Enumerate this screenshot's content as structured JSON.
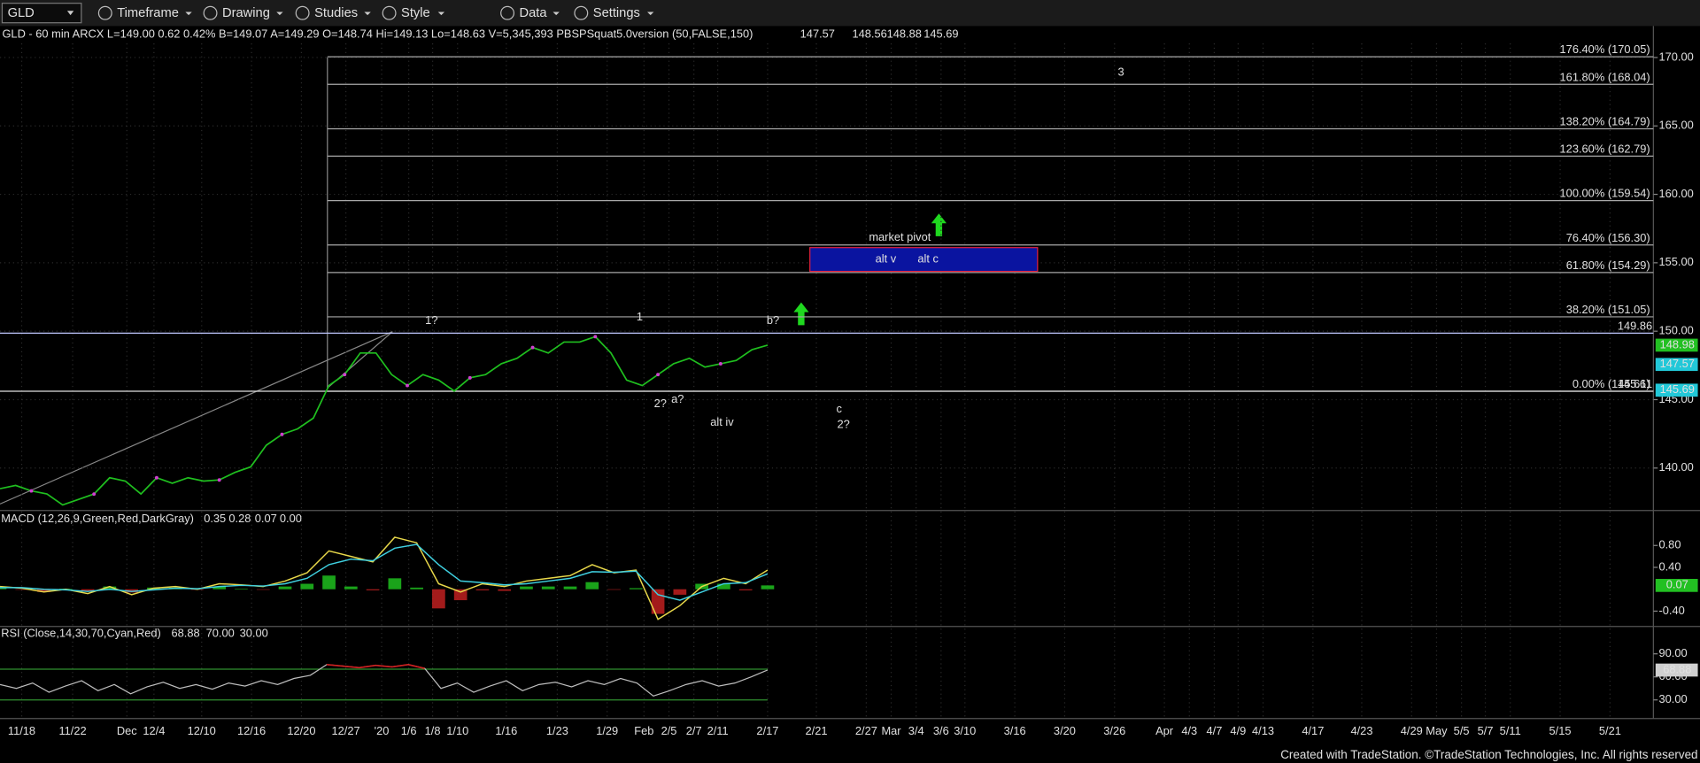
{
  "toolbar": {
    "symbol": "GLD",
    "menus": [
      "Timeframe",
      "Drawing",
      "Studies",
      "Style",
      "Data",
      "Settings"
    ]
  },
  "header": {
    "text": "GLD - 60 min ARCX L=149.00 0.62 0.42% B=149.07 A=149.29 O=148.74 Hi=149.13 Lo=148.63 V=5,345,393 PBSPSquat5.0version (50,FALSE,150)",
    "values": [
      {
        "label": "147.57",
        "color": "#3fd0e0"
      },
      {
        "label": "148.56",
        "color": "#e8d84a"
      },
      {
        "label": "148.88",
        "color": "#d040d0"
      },
      {
        "label": "145.69",
        "color": "#3fd0e0"
      }
    ]
  },
  "price_panel": {
    "ylim": [
      136.9,
      172.3
    ],
    "yticks": [
      {
        "value": 140,
        "label": "140.00"
      },
      {
        "value": 145,
        "label": "145.00"
      },
      {
        "value": 150,
        "label": "150.00"
      },
      {
        "value": 155,
        "label": "155.00"
      },
      {
        "value": 160,
        "label": "160.00"
      },
      {
        "value": 165,
        "label": "165.00"
      },
      {
        "value": 170,
        "label": "170.00"
      }
    ],
    "series": {
      "color": "#1fbf1f",
      "values": [
        138.49,
        138.73,
        138.33,
        138.1,
        137.3,
        137.7,
        138.1,
        139.29,
        139.05,
        138.1,
        139.29,
        138.89,
        139.29,
        139.05,
        139.13,
        139.68,
        140.08,
        141.67,
        142.46,
        142.86,
        143.65,
        146.03,
        146.83,
        148.41,
        148.41,
        146.83,
        146.03,
        146.83,
        146.43,
        145.63,
        146.59,
        146.83,
        147.62,
        148.02,
        148.81,
        148.41,
        149.21,
        149.21,
        149.6,
        148.41,
        146.43,
        146.03,
        146.83,
        147.62,
        148.02,
        147.38,
        147.62,
        147.86,
        148.65,
        148.98
      ]
    },
    "levels": [
      {
        "label": "176.40% (170.05)",
        "value": 170.05
      },
      {
        "label": "161.80% (168.04)",
        "value": 168.04
      },
      {
        "label": "138.20% (164.79)",
        "value": 164.79
      },
      {
        "label": "123.60% (162.79)",
        "value": 162.79
      },
      {
        "label": "100.00% (159.54)",
        "value": 159.54
      },
      {
        "label": "76.40% (156.30)",
        "value": 156.3
      },
      {
        "label": "61.80% (154.29)",
        "value": 154.29
      },
      {
        "label": "38.20% (151.05)",
        "value": 151.05
      },
      {
        "label": "0.00% (145.61)",
        "value": 145.61
      }
    ],
    "markers": [
      {
        "value": 149.86,
        "label": "149.86",
        "color": "#c0c8ff",
        "boxed": false,
        "line": true
      },
      {
        "value": 148.98,
        "label": "148.98",
        "color": "#22c022",
        "boxed": true,
        "line": false
      },
      {
        "value": 147.57,
        "label": "147.57",
        "color": "#22c8d8",
        "boxed": true,
        "line": false
      },
      {
        "value": 145.61,
        "label": "145.61",
        "color": "#e0e0e0",
        "boxed": false,
        "line": true
      },
      {
        "value": 145.69,
        "label": "145.69",
        "color": "#22c8d8",
        "boxed": true,
        "line": false
      }
    ],
    "pivot": {
      "title": "market pivot",
      "low": 154.37,
      "high": 156.11,
      "labels": [
        {
          "text": "alt v",
          "color": "#3fd0e0"
        },
        {
          "text": "alt c",
          "color": "#e02020"
        }
      ]
    },
    "annotations": [
      {
        "text": "3",
        "color": "#1fbf1f"
      },
      {
        "text": "1?",
        "color": "#e8d84a"
      },
      {
        "text": "1",
        "color": "#1fbf1f"
      },
      {
        "text": "b?",
        "color": "#1fbf1f"
      },
      {
        "text": "2?",
        "color": "#e8d84a"
      },
      {
        "text": "a?",
        "color": "#1fbf1f"
      },
      {
        "text": "alt iv",
        "color": "#3fd0e0"
      },
      {
        "text": "c",
        "color": "#1fbf1f"
      },
      {
        "text": "2?",
        "color": "#1fbf1f"
      }
    ]
  },
  "macd_panel": {
    "label": "MACD (12,26,9,Green,Red,DarkGray)",
    "values": [
      {
        "label": "0.35",
        "color": "#e8d84a"
      },
      {
        "label": "0.28",
        "color": "#3fd0e0"
      },
      {
        "label": "0.07",
        "color": "#1fbf1f"
      },
      {
        "label": "0.00",
        "color": "#707070"
      }
    ],
    "ylim": [
      -0.68,
      1.44
    ],
    "yticks": [
      {
        "value": 0.8,
        "label": "0.80"
      },
      {
        "value": 0.4,
        "label": "0.40"
      },
      {
        "value": -0.4,
        "label": "-0.40"
      }
    ],
    "marker": {
      "value": 0.07,
      "label": "0.07",
      "color": "#22c022"
    },
    "macd": {
      "color": "#e8d84a",
      "values": [
        0.05,
        0.02,
        -0.05,
        0.0,
        -0.08,
        0.05,
        -0.1,
        0.02,
        0.05,
        0.0,
        0.1,
        0.08,
        0.05,
        0.15,
        0.3,
        0.7,
        0.6,
        0.5,
        0.95,
        0.85,
        0.1,
        -0.05,
        0.1,
        0.05,
        0.15,
        0.2,
        0.25,
        0.45,
        0.3,
        0.35,
        -0.55,
        -0.3,
        0.05,
        0.2,
        0.1,
        0.35
      ]
    },
    "signal": {
      "color": "#3fd0e0",
      "values": [
        0.03,
        0.03,
        0.0,
        -0.01,
        -0.04,
        0.0,
        -0.04,
        -0.01,
        0.02,
        0.01,
        0.05,
        0.07,
        0.06,
        0.1,
        0.2,
        0.45,
        0.55,
        0.52,
        0.75,
        0.82,
        0.45,
        0.15,
        0.12,
        0.08,
        0.1,
        0.15,
        0.2,
        0.32,
        0.31,
        0.33,
        -0.1,
        -0.2,
        -0.05,
        0.1,
        0.12,
        0.28
      ]
    },
    "histogram": {
      "up_color": "#1fbf1f",
      "down_color": "#c02020",
      "values": [
        0.02,
        -0.01,
        -0.05,
        0.01,
        -0.04,
        0.05,
        -0.06,
        0.03,
        0.03,
        -0.01,
        0.05,
        0.01,
        -0.01,
        0.05,
        0.1,
        0.25,
        0.05,
        -0.02,
        0.2,
        0.03,
        -0.35,
        -0.2,
        -0.02,
        -0.03,
        0.05,
        0.05,
        0.05,
        0.13,
        -0.01,
        0.02,
        -0.45,
        -0.1,
        0.1,
        0.1,
        -0.02,
        0.07
      ]
    }
  },
  "rsi_panel": {
    "label": "RSI (Close,14,30,70,Cyan,Red)",
    "values": [
      {
        "label": "68.88",
        "color": "#e0e0e0"
      },
      {
        "label": "70.00",
        "color": "#e8d84a"
      },
      {
        "label": "30.00",
        "color": "#e8d84a"
      }
    ],
    "ylim": [
      5.7,
      125.7
    ],
    "yticks": [
      {
        "value": 90,
        "label": "90.00"
      },
      {
        "value": 60,
        "label": "60.00"
      },
      {
        "value": 30,
        "label": "30.00"
      }
    ],
    "levels": [
      70,
      30
    ],
    "marker": {
      "value": 68.88,
      "label": "68.88",
      "color": "#d0d0d0"
    },
    "series": {
      "color": "#bdbdbd",
      "overbought_color": "#d02020",
      "values": [
        50,
        45,
        52,
        40,
        48,
        55,
        42,
        50,
        38,
        47,
        53,
        45,
        50,
        44,
        52,
        48,
        55,
        50,
        58,
        62,
        76,
        74,
        72,
        75,
        73,
        76,
        71,
        45,
        52,
        40,
        48,
        55,
        42,
        50,
        53,
        47,
        55,
        50,
        58,
        52,
        35,
        42,
        50,
        55,
        48,
        52,
        60,
        68.88
      ]
    }
  },
  "x_axis": {
    "labels": [
      "11/18",
      "11/22",
      "Dec",
      "12/4",
      "12/10",
      "12/16",
      "12/20",
      "12/27",
      "'20",
      "1/6",
      "1/8",
      "1/10",
      "1/16",
      "1/23",
      "1/29",
      "Feb",
      "2/5",
      "2/7",
      "2/11",
      "2/17",
      "2/21",
      "2/27",
      "Mar",
      "3/4",
      "3/6",
      "3/10",
      "3/16",
      "3/20",
      "3/26",
      "Apr",
      "4/3",
      "4/7",
      "4/9",
      "4/13",
      "4/17",
      "4/23",
      "4/29",
      "May",
      "5/5",
      "5/7",
      "5/11",
      "5/15",
      "5/21"
    ]
  },
  "footer": "Created with TradeStation. ©TradeStation Technologies, Inc. All rights reserved"
}
